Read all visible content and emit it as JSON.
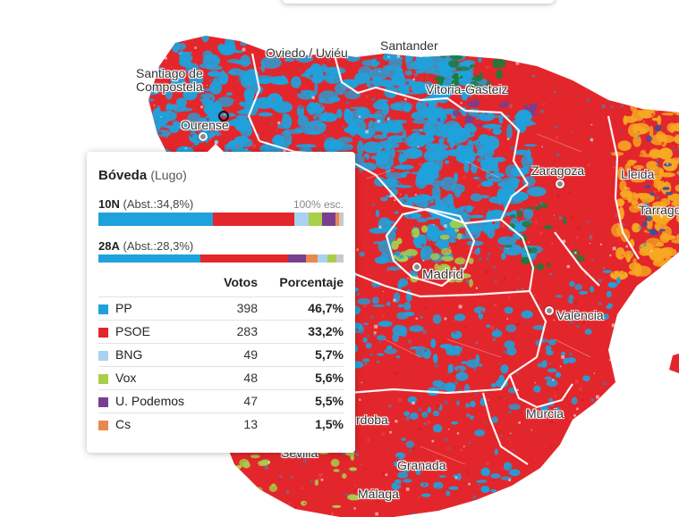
{
  "map": {
    "cities": [
      {
        "key": "santiago",
        "label": "Santiago de\nCompostela"
      },
      {
        "key": "oviedo",
        "label": "Oviedo / Uviéu"
      },
      {
        "key": "santander",
        "label": "Santander"
      },
      {
        "key": "vitoria",
        "label": "Vitoria-Gasteiz"
      },
      {
        "key": "ourense",
        "label": "Ourense"
      },
      {
        "key": "zaragoza",
        "label": "Zaragoza"
      },
      {
        "key": "lleida",
        "label": "Lleida"
      },
      {
        "key": "tarragona",
        "label": "Tarrago"
      },
      {
        "key": "madrid",
        "label": "Madrid"
      },
      {
        "key": "valencia",
        "label": "València"
      },
      {
        "key": "murcia",
        "label": "Murcia"
      },
      {
        "key": "cordoba",
        "label": "rdoba"
      },
      {
        "key": "sevilla",
        "label": "Sevilla"
      },
      {
        "key": "granada",
        "label": "Granada"
      },
      {
        "key": "malaga",
        "label": "Málaga"
      }
    ],
    "colors": {
      "pp": "#1fa2dc",
      "psoe": "#e3262b",
      "bng": "#a7d2f0",
      "vox": "#a8cf4a",
      "podemos": "#7a3e8e",
      "cs": "#e9874f",
      "erc": "#f6a821",
      "pnv": "#1e7a3c",
      "background": "#ffffff"
    }
  },
  "tooltip": {
    "municipality": "Bóveda",
    "province": "(Lugo)",
    "current": {
      "label": "10N",
      "abstention": "(Abst.:34,8%)",
      "scrutiny": "100% esc."
    },
    "previous": {
      "label": "28A",
      "abstention": "(Abst.:28,3%)"
    },
    "headers": {
      "votes": "Votos",
      "percentage": "Porcentaje"
    },
    "results": [
      {
        "party": "PP",
        "votes": "398",
        "pct": "46,7%",
        "color": "#1fa2dc",
        "share": 46.7
      },
      {
        "party": "PSOE",
        "votes": "283",
        "pct": "33,2%",
        "color": "#e3262b",
        "share": 33.2
      },
      {
        "party": "BNG",
        "votes": "49",
        "pct": "5,7%",
        "color": "#a7d2f0",
        "share": 5.7
      },
      {
        "party": "Vox",
        "votes": "48",
        "pct": "5,6%",
        "color": "#a8cf4a",
        "share": 5.6
      },
      {
        "party": "U. Podemos",
        "votes": "47",
        "pct": "5,5%",
        "color": "#7a3e8e",
        "share": 5.5
      },
      {
        "party": "Cs",
        "votes": "13",
        "pct": "1,5%",
        "color": "#e9874f",
        "share": 1.5
      }
    ],
    "current_bar": [
      {
        "color": "#1fa2dc",
        "share": 46.7
      },
      {
        "color": "#e3262b",
        "share": 33.2
      },
      {
        "color": "#a7d2f0",
        "share": 5.7
      },
      {
        "color": "#a8cf4a",
        "share": 5.6
      },
      {
        "color": "#7a3e8e",
        "share": 5.5
      },
      {
        "color": "#e9874f",
        "share": 1.5
      },
      {
        "color": "#c8c8c8",
        "share": 1.8
      }
    ],
    "previous_bar": [
      {
        "color": "#1fa2dc",
        "share": 41.5
      },
      {
        "color": "#e3262b",
        "share": 36.0
      },
      {
        "color": "#7a3e8e",
        "share": 7.0
      },
      {
        "color": "#e9874f",
        "share": 5.0
      },
      {
        "color": "#a7d2f0",
        "share": 4.0
      },
      {
        "color": "#a8cf4a",
        "share": 3.5
      },
      {
        "color": "#c8c8c8",
        "share": 3.0
      }
    ]
  }
}
